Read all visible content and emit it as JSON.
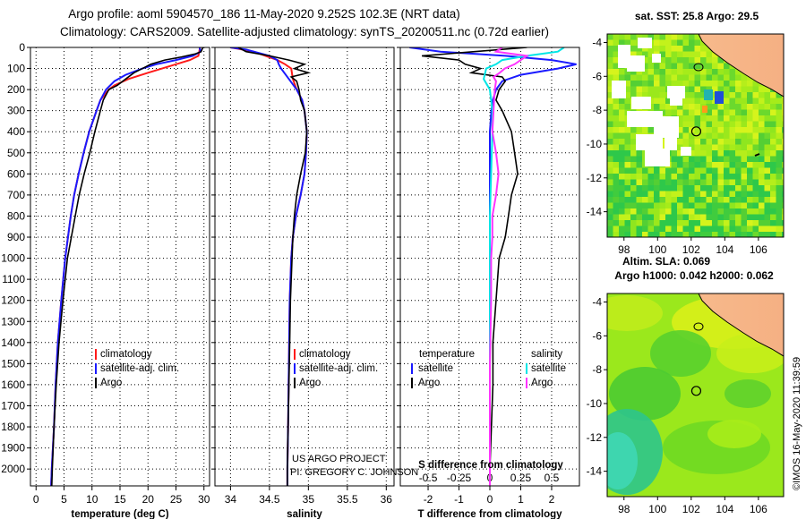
{
  "title_line1": "Argo profile: aoml 5904570_186 11-May-2020 9.252S 102.3E (NRT data)",
  "title_line2": "Climatology: CARS2009. Satellite-adjusted climatology: synTS_20200511.nc (0.72d earlier)",
  "colors": {
    "climatology": "#ff1a1a",
    "satellite": "#1a1aff",
    "argo": "#000000",
    "argo_salinity": "#ff33ff",
    "satellite_salinity": "#00e6e6"
  },
  "chart_data": [
    {
      "type": "line",
      "name": "temperature-profile",
      "xlabel": "temperature (deg C)",
      "ylabel": "",
      "xlim": [
        -1,
        31
      ],
      "ylim": [
        0,
        2080
      ],
      "xticks": [
        0,
        5,
        10,
        15,
        20,
        25,
        30
      ],
      "xtick_labels": [
        "0",
        "5",
        "10",
        "15",
        "20",
        "25",
        "30"
      ],
      "yticks": [
        0,
        100,
        200,
        300,
        400,
        500,
        600,
        700,
        800,
        900,
        1000,
        1100,
        1200,
        1300,
        1400,
        1500,
        1600,
        1700,
        1800,
        1900,
        2000
      ],
      "grid": true,
      "legend": [
        {
          "label": "climatology",
          "color": "#ff1a1a"
        },
        {
          "label": "satellite-adj. clim.",
          "color": "#1a1aff"
        },
        {
          "label": "Argo",
          "color": "#000000"
        }
      ],
      "series": [
        {
          "name": "climatology",
          "color": "#ff1a1a",
          "depth": [
            0,
            40,
            60,
            80,
            100,
            120,
            150,
            180,
            200,
            250,
            300,
            400,
            500,
            600,
            700,
            800,
            1000,
            1200,
            1400,
            1600,
            1800,
            2000,
            2080
          ],
          "values": [
            29.3,
            29.0,
            27.5,
            25.0,
            22.5,
            20.0,
            16.5,
            14.0,
            13.0,
            11.5,
            10.8,
            9.5,
            8.5,
            7.6,
            6.8,
            6.2,
            5.2,
            4.5,
            3.9,
            3.5,
            3.2,
            2.8,
            2.7
          ]
        },
        {
          "name": "satellite-adj. clim.",
          "color": "#1a1aff",
          "depth": [
            0,
            20,
            40,
            60,
            80,
            100,
            130,
            160,
            200,
            250,
            300,
            400,
            500,
            600,
            700,
            800,
            1000,
            1200,
            1400,
            1600,
            1800,
            2000,
            2080
          ],
          "values": [
            29.2,
            29.4,
            28.0,
            25.0,
            21.5,
            19.0,
            16.0,
            14.0,
            12.5,
            11.5,
            10.8,
            9.5,
            8.5,
            7.6,
            6.8,
            6.2,
            5.2,
            4.5,
            3.9,
            3.5,
            3.2,
            2.8,
            2.7
          ]
        },
        {
          "name": "Argo",
          "color": "#000000",
          "depth": [
            0,
            20,
            30,
            45,
            60,
            80,
            100,
            120,
            150,
            180,
            200,
            250,
            300,
            400,
            500,
            600,
            700,
            800,
            1000,
            1200,
            1400,
            1600,
            1800,
            2000,
            2080
          ],
          "values": [
            29.8,
            29.5,
            28.5,
            26.0,
            23.0,
            20.5,
            19.0,
            17.5,
            16.0,
            14.5,
            13.0,
            12.0,
            11.5,
            10.5,
            9.6,
            8.6,
            7.7,
            7.0,
            5.6,
            4.8,
            4.1,
            3.6,
            3.2,
            2.9,
            2.8
          ]
        }
      ]
    },
    {
      "type": "line",
      "name": "salinity-profile",
      "xlabel": "salinity",
      "xlim": [
        33.8,
        36.1
      ],
      "ylim": [
        0,
        2080
      ],
      "xticks": [
        34,
        34.5,
        35,
        35.5,
        36
      ],
      "xtick_labels": [
        "34",
        "34.5",
        "35",
        "35.5",
        "36"
      ],
      "grid": true,
      "legend": [
        {
          "label": "climatology",
          "color": "#ff1a1a"
        },
        {
          "label": "satellite-adj. clim.",
          "color": "#1a1aff"
        },
        {
          "label": "Argo",
          "color": "#000000"
        }
      ],
      "annotation_lines": [
        "US ARGO PROJECT",
        "PI: GREGORY C. JOHNSON"
      ],
      "series": [
        {
          "name": "climatology",
          "color": "#ff1a1a",
          "depth": [
            0,
            20,
            40,
            60,
            80,
            100,
            150,
            200,
            250,
            300,
            400,
            500,
            600,
            700,
            800,
            900,
            1000,
            1200,
            1500,
            1800,
            2000,
            2080
          ],
          "values": [
            34.0,
            34.3,
            34.45,
            34.6,
            34.7,
            34.78,
            34.8,
            34.85,
            34.92,
            34.95,
            34.98,
            34.97,
            34.95,
            34.9,
            34.84,
            34.8,
            34.78,
            34.76,
            34.75,
            34.74,
            34.73,
            34.73
          ]
        },
        {
          "name": "satellite-adj. clim.",
          "color": "#1a1aff",
          "depth": [
            0,
            10,
            20,
            40,
            60,
            80,
            100,
            150,
            200,
            250,
            300,
            400,
            500,
            600,
            700,
            800,
            900,
            1000,
            1200,
            1500,
            1800,
            2000,
            2080
          ],
          "values": [
            34.0,
            34.2,
            34.3,
            34.5,
            34.6,
            34.62,
            34.65,
            34.75,
            34.85,
            34.92,
            34.95,
            34.98,
            34.97,
            34.95,
            34.9,
            34.84,
            34.8,
            34.78,
            34.76,
            34.75,
            34.74,
            34.73,
            34.73
          ]
        },
        {
          "name": "Argo",
          "color": "#000000",
          "depth": [
            0,
            20,
            40,
            60,
            80,
            100,
            120,
            140,
            160,
            200,
            250,
            300,
            400,
            500,
            600,
            700,
            800,
            900,
            1000,
            1200,
            1400,
            1600,
            1800,
            2000,
            2080
          ],
          "values": [
            34.1,
            34.2,
            34.5,
            34.75,
            34.95,
            34.82,
            35.0,
            34.78,
            34.85,
            34.88,
            34.9,
            34.95,
            34.98,
            34.96,
            34.9,
            34.85,
            34.82,
            34.8,
            34.79,
            34.77,
            34.76,
            34.75,
            34.74,
            34.73,
            34.73
          ]
        }
      ]
    },
    {
      "type": "line",
      "name": "difference-profile",
      "xlabel": "T difference from climatology",
      "xlim": [
        -2.9,
        2.9
      ],
      "ylim": [
        0,
        2080
      ],
      "xticks": [
        -2,
        -1,
        0,
        1,
        2
      ],
      "xtick_labels": [
        "-2",
        "-1",
        "0",
        "1",
        "2"
      ],
      "secondary_xlabel": "S difference from climatology",
      "secondary_xticks": [
        -0.5,
        -0.25,
        0,
        0.25,
        0.5
      ],
      "secondary_xtick_labels": [
        "-0.5",
        "-0.25",
        "0",
        "0.25",
        "0.5"
      ],
      "grid": true,
      "legend_headers": [
        "temperature",
        "salinity"
      ],
      "legend": [
        {
          "label": "satellite",
          "color": "#1a1aff",
          "group": "temperature"
        },
        {
          "label": "Argo",
          "color": "#000000",
          "group": "temperature"
        },
        {
          "label": "satellite",
          "color": "#00e6e6",
          "group": "salinity"
        },
        {
          "label": "Argo",
          "color": "#ff33ff",
          "group": "salinity"
        }
      ],
      "series": [
        {
          "name": "T satellite",
          "color": "#1a1aff",
          "depth": [
            0,
            20,
            40,
            60,
            80,
            100,
            130,
            160,
            200,
            250,
            300,
            400,
            600,
            800,
            1000,
            1500,
            2000,
            2080
          ],
          "values": [
            -2.6,
            -1.6,
            0.5,
            2.0,
            2.8,
            2.2,
            1.0,
            0.4,
            0.2,
            0.1,
            0.05,
            0.0,
            0.0,
            0.0,
            0.0,
            0.0,
            0.0,
            0.0
          ]
        },
        {
          "name": "T Argo",
          "color": "#000000",
          "depth": [
            0,
            20,
            40,
            60,
            80,
            100,
            120,
            140,
            160,
            200,
            250,
            300,
            400,
            500,
            600,
            700,
            800,
            900,
            1000,
            1200,
            1400,
            1600,
            1800,
            2000,
            2080
          ],
          "values": [
            1.2,
            -0.5,
            -2.2,
            -1.0,
            -0.8,
            -0.3,
            -0.6,
            0.4,
            0.5,
            0.3,
            0.2,
            0.4,
            0.7,
            0.8,
            0.9,
            0.7,
            0.6,
            0.5,
            0.3,
            0.2,
            0.1,
            0.1,
            0.05,
            0.0,
            0.0
          ]
        },
        {
          "name": "S satellite",
          "color": "#00e6e6",
          "depth": [
            0,
            20,
            40,
            60,
            80,
            100,
            150,
            200,
            300,
            400,
            600,
            800,
            1000,
            1500,
            2000,
            2080
          ],
          "values": [
            0.6,
            0.55,
            0.3,
            0.1,
            0.05,
            -0.03,
            -0.05,
            0.0,
            0.02,
            0.02,
            0.01,
            0.0,
            0.0,
            0.0,
            0.0,
            0.0
          ]
        },
        {
          "name": "S Argo",
          "color": "#ff33ff",
          "depth": [
            0,
            20,
            40,
            60,
            80,
            100,
            120,
            140,
            160,
            200,
            300,
            400,
            500,
            600,
            700,
            800,
            900,
            1000,
            1200,
            1500,
            2000,
            2080
          ],
          "values": [
            0.1,
            0.05,
            0.3,
            0.25,
            0.2,
            0.12,
            0.08,
            0.03,
            0.05,
            0.04,
            0.03,
            0.02,
            0.05,
            0.07,
            0.05,
            0.02,
            0.02,
            0.01,
            0.01,
            0.0,
            0.0,
            0.0
          ]
        }
      ]
    },
    {
      "type": "heatmap",
      "name": "sst-map",
      "title": "sat. SST: 25.8 Argo: 29.5",
      "xlim": [
        97,
        107.5
      ],
      "ylim": [
        -15.5,
        -3.5
      ],
      "xticks": [
        98,
        100,
        102,
        104,
        106
      ],
      "yticks": [
        -4,
        -6,
        -8,
        -10,
        -12,
        -14
      ],
      "argo_position": [
        102.3,
        -9.252
      ]
    },
    {
      "type": "heatmap",
      "name": "sla-map",
      "title_line1": "Altim. SLA: 0.069",
      "title_line2": "Argo h1000: 0.042 h2000: 0.062",
      "xlim": [
        97,
        107.5
      ],
      "ylim": [
        -15.5,
        -3.5
      ],
      "xticks": [
        98,
        100,
        102,
        104,
        106
      ],
      "yticks": [
        -4,
        -6,
        -8,
        -10,
        -12,
        -14
      ],
      "argo_position": [
        102.3,
        -9.252
      ]
    }
  ],
  "imos_credit": "©IMOS 16-May-2020 11:39:59"
}
